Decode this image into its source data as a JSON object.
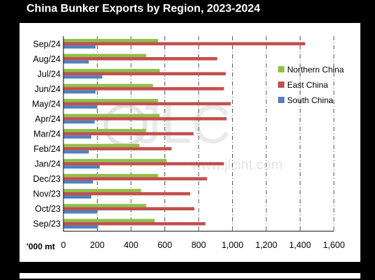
{
  "chart_data": {
    "type": "bar",
    "orientation": "horizontal",
    "title": "China Bunker Exports by Region, 2023-2024",
    "unit_label": "'000 mt",
    "categories": [
      "Sep/24",
      "Aug/24",
      "Jul/24",
      "Jun/24",
      "May/24",
      "Apr/24",
      "Mar/24",
      "Feb/24",
      "Jan/24",
      "Dec/23",
      "Nov/23",
      "Oct/23",
      "Sep/23"
    ],
    "series": [
      {
        "name": "Northern China",
        "color": "#8fbf4a",
        "values": [
          560,
          490,
          570,
          530,
          560,
          570,
          490,
          450,
          610,
          560,
          460,
          490,
          540
        ]
      },
      {
        "name": "East China",
        "color": "#c0504d",
        "values": [
          1430,
          910,
          960,
          950,
          990,
          965,
          770,
          640,
          950,
          850,
          750,
          775,
          840
        ]
      },
      {
        "name": "South China",
        "color": "#4f81bd",
        "values": [
          190,
          150,
          230,
          190,
          200,
          185,
          165,
          150,
          215,
          175,
          165,
          200,
          205
        ]
      }
    ],
    "xlim": [
      0,
      1600
    ],
    "x_ticks": [
      "0",
      "200",
      "400",
      "600",
      "800",
      "1,000",
      "1,200",
      "1,400",
      "1,600"
    ],
    "grid": "vertical dash-dot",
    "legend_position": "right"
  },
  "watermark": {
    "logo": "JLC",
    "url": "www.jlcint.com"
  }
}
